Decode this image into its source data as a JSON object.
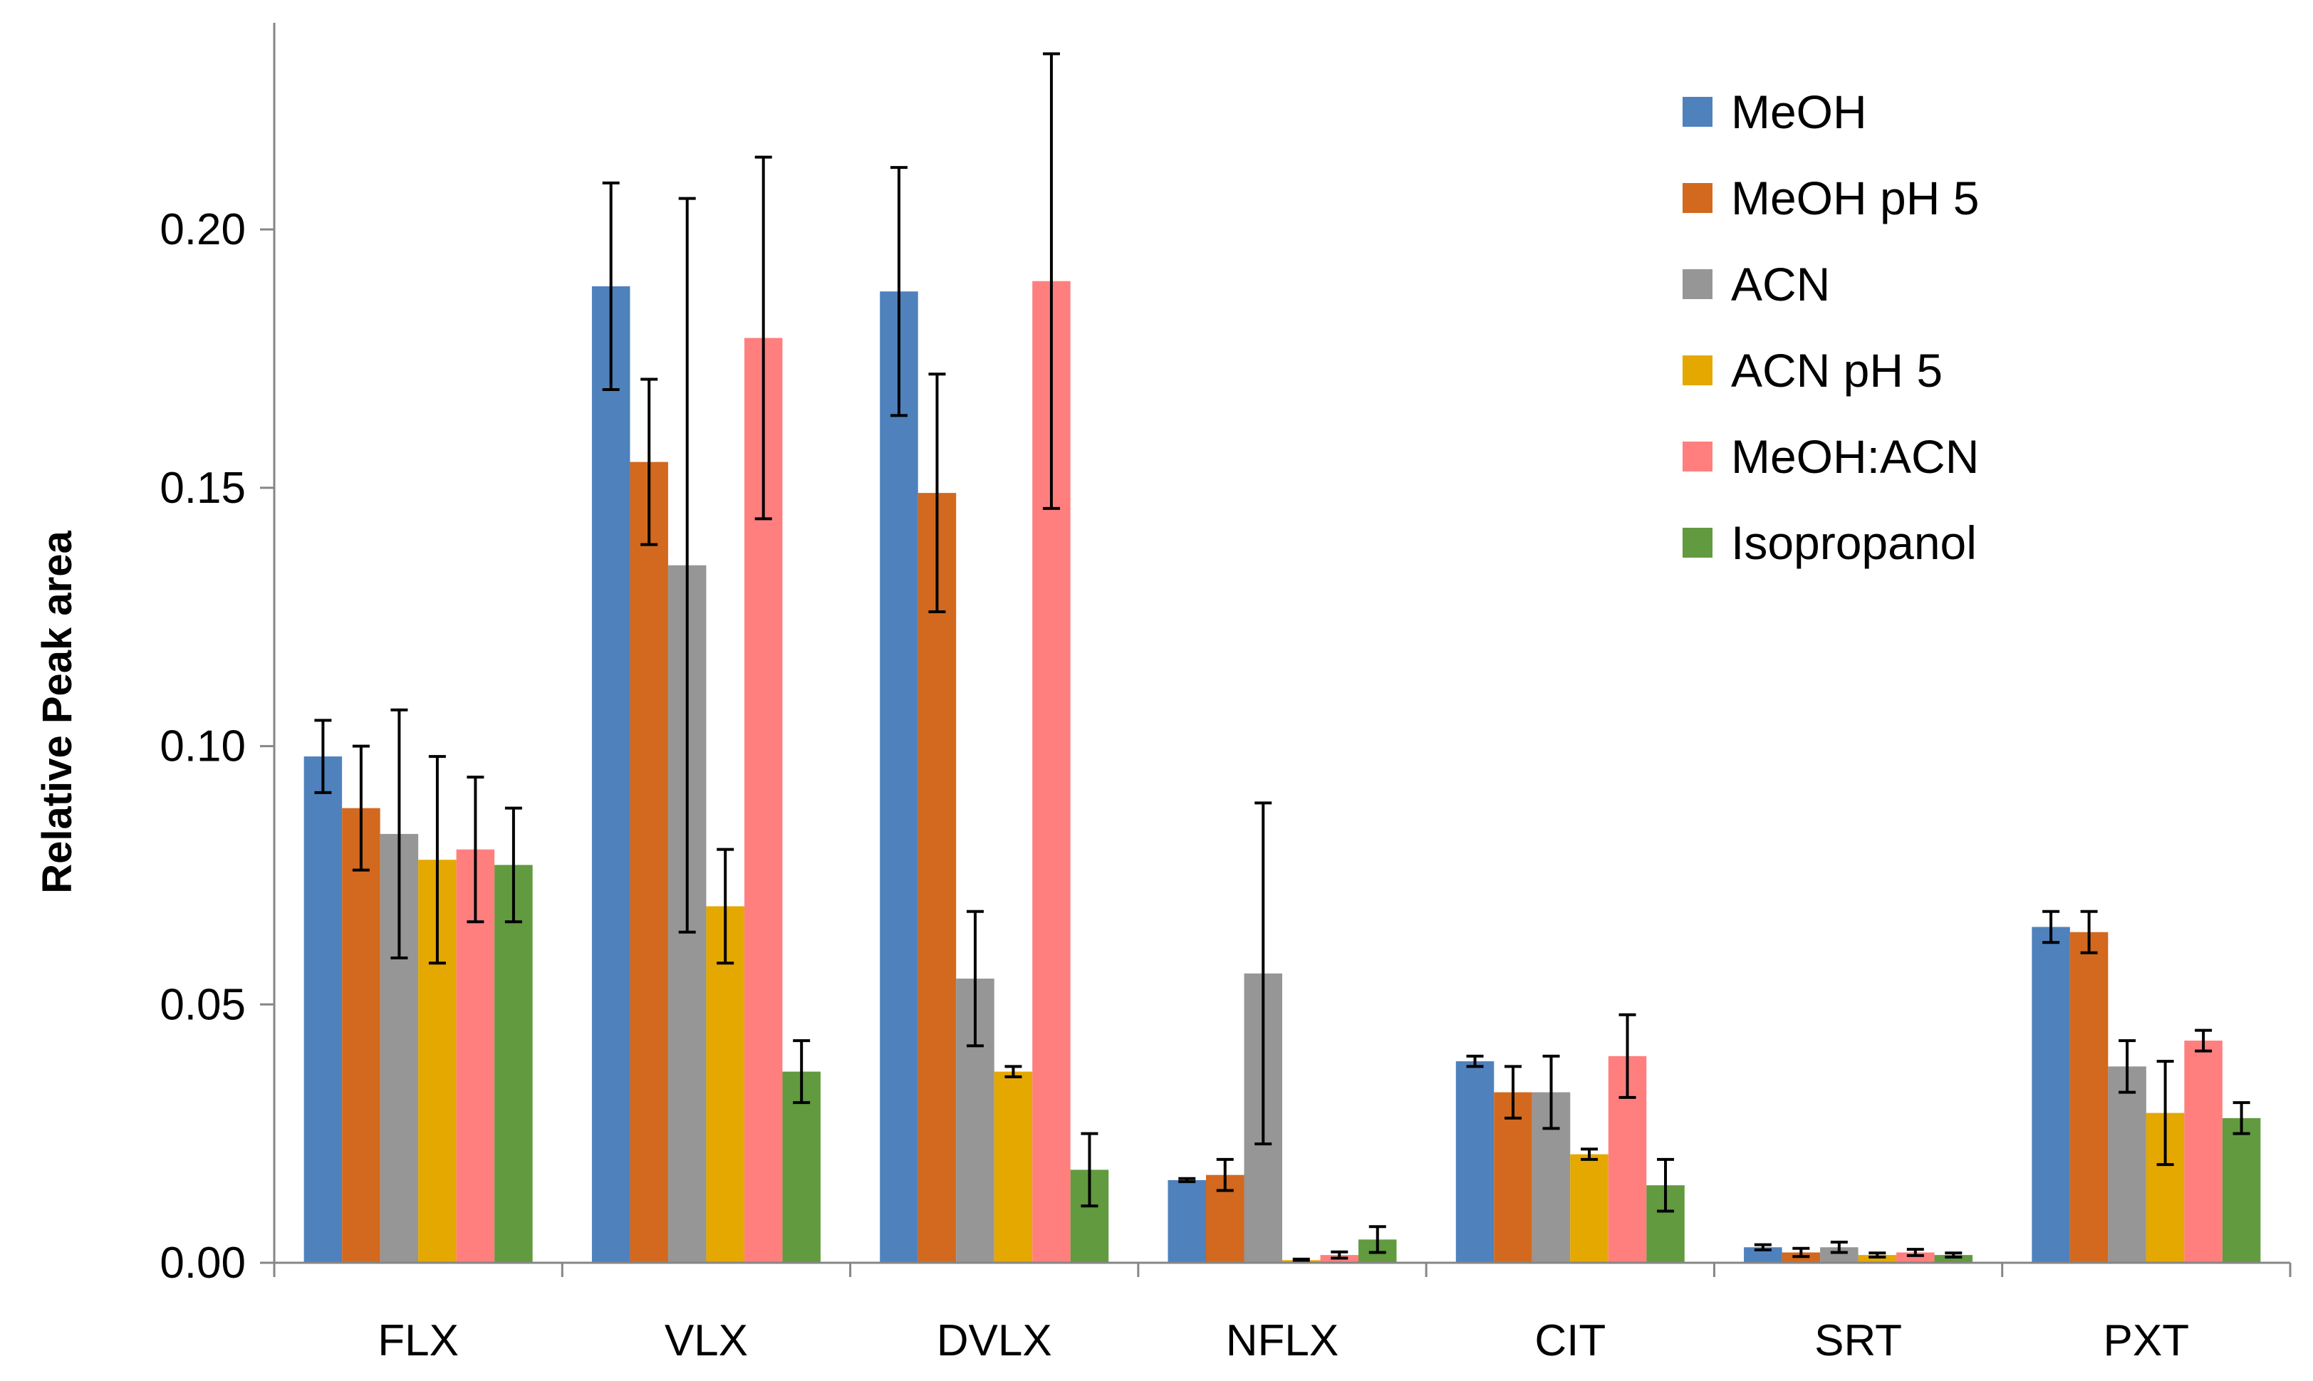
{
  "chart_data": {
    "type": "bar",
    "title": "",
    "xlabel": "",
    "ylabel": "Relative Peak area",
    "ylim": [
      0,
      0.24
    ],
    "yticks": [
      "0.00",
      "0.05",
      "0.10",
      "0.15",
      "0.20"
    ],
    "ytick_values": [
      0,
      0.05,
      0.1,
      0.15,
      0.2
    ],
    "grid": false,
    "legend_position": "top-right",
    "categories": [
      "FLX",
      "VLX",
      "DVLX",
      "NFLX",
      "CIT",
      "SRT",
      "PXT"
    ],
    "series": [
      {
        "name": "MeOH",
        "color": "#4F81BD",
        "values": [
          0.098,
          0.189,
          0.188,
          0.016,
          0.039,
          0.003,
          0.065
        ],
        "errors": [
          0.007,
          0.02,
          0.024,
          0.0003,
          0.001,
          0.0005,
          0.003
        ]
      },
      {
        "name": "MeOH pH 5",
        "color": "#D2691E",
        "values": [
          0.088,
          0.155,
          0.149,
          0.017,
          0.033,
          0.002,
          0.064
        ],
        "errors": [
          0.012,
          0.016,
          0.023,
          0.003,
          0.005,
          0.0008,
          0.004
        ]
      },
      {
        "name": "ACN",
        "color": "#969696",
        "values": [
          0.083,
          0.135,
          0.055,
          0.056,
          0.033,
          0.003,
          0.038
        ],
        "errors": [
          0.024,
          0.071,
          0.013,
          0.033,
          0.007,
          0.001,
          0.005
        ]
      },
      {
        "name": "ACN pH 5",
        "color": "#E4A800",
        "values": [
          0.078,
          0.069,
          0.037,
          0.0005,
          0.021,
          0.0015,
          0.029
        ],
        "errors": [
          0.02,
          0.011,
          0.001,
          0.0002,
          0.001,
          0.0004,
          0.01
        ]
      },
      {
        "name": "MeOH:ACN",
        "color": "#FF7F7F",
        "values": [
          0.08,
          0.179,
          0.19,
          0.0015,
          0.04,
          0.002,
          0.043
        ],
        "errors": [
          0.014,
          0.035,
          0.044,
          0.0006,
          0.008,
          0.0006,
          0.002
        ]
      },
      {
        "name": "Isopropanol",
        "color": "#629A3F",
        "values": [
          0.077,
          0.037,
          0.018,
          0.0045,
          0.015,
          0.0015,
          0.028
        ],
        "errors": [
          0.011,
          0.006,
          0.007,
          0.0025,
          0.005,
          0.0004,
          0.003
        ]
      }
    ]
  }
}
